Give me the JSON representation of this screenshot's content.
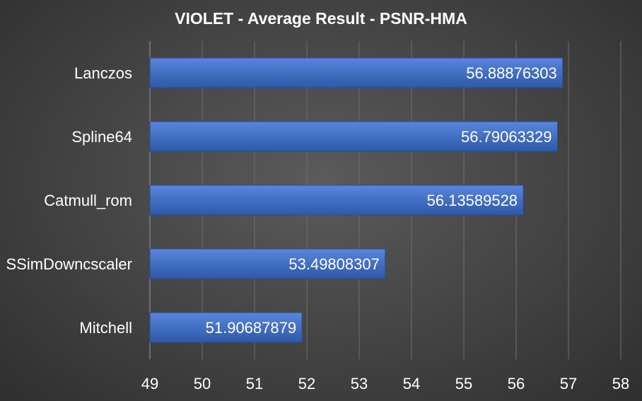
{
  "chart_data": {
    "type": "bar",
    "orientation": "horizontal",
    "title": "VIOLET  - Average Result  - PSNR-HMA",
    "categories": [
      "Lanczos",
      "Spline64",
      "Catmull_rom",
      "SSimDowncscaler",
      "Mitchell"
    ],
    "values": [
      56.88876303,
      56.79063329,
      56.13589528,
      53.49808307,
      51.90687879
    ],
    "value_labels": [
      "56.88876303",
      "56.79063329",
      "56.13589528",
      "53.49808307",
      "51.90687879"
    ],
    "xlim": [
      49,
      58
    ],
    "xticks": [
      "49",
      "50",
      "51",
      "52",
      "53",
      "54",
      "55",
      "56",
      "57",
      "58"
    ],
    "grid": true,
    "legend": "none",
    "colors": {
      "bar_top": "#5b84e0",
      "bar_mid": "#4472c4",
      "bar_bottom": "#2f58a8"
    }
  }
}
